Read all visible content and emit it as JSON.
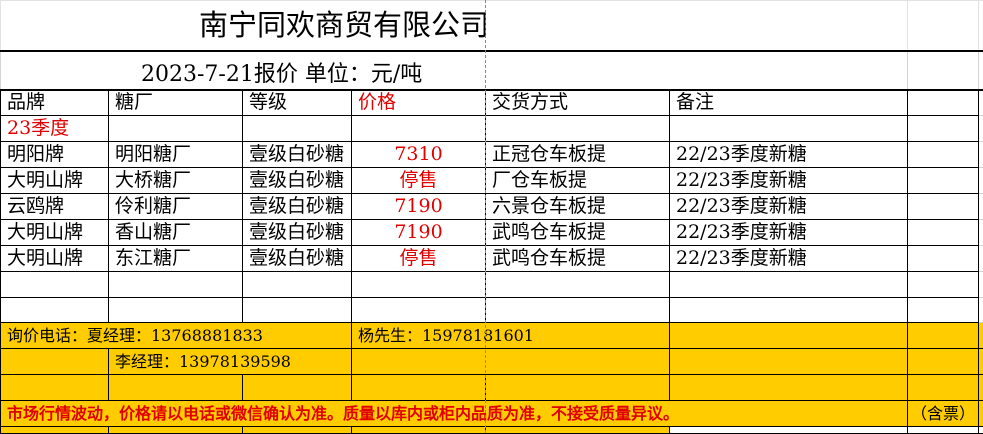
{
  "title": "南宁同欢商贸有限公司",
  "subtitle": "2023-7-21报价   单位：元/吨",
  "headers": [
    "品牌",
    "糖厂",
    "等级",
    "价格",
    "交货方式",
    "备注"
  ],
  "season_label": "23季度",
  "rows": [
    {
      "brand": "明阳牌",
      "mill": "明阳糖厂",
      "grade": "壹级白砂糖",
      "price": "7310",
      "delivery": "正冠仓车板提",
      "note": "22/23季度新糖"
    },
    {
      "brand": "大明山牌",
      "mill": "大桥糖厂",
      "grade": "壹级白砂糖",
      "price": "停售",
      "delivery": "厂仓车板提",
      "note": "22/23季度新糖"
    },
    {
      "brand": "云鸥牌",
      "mill": "伶利糖厂",
      "grade": "壹级白砂糖",
      "price": "7190",
      "delivery": "六景仓车板提",
      "note": "22/23季度新糖"
    },
    {
      "brand": "大明山牌",
      "mill": "香山糖厂",
      "grade": "壹级白砂糖",
      "price": "7190",
      "delivery": "武鸣仓车板提",
      "note": "22/23季度新糖"
    },
    {
      "brand": "大明山牌",
      "mill": "东江糖厂",
      "grade": "壹级白砂糖",
      "price": "停售",
      "delivery": "武鸣仓车板提",
      "note": "22/23季度新糖"
    }
  ],
  "contacts": {
    "line1": "询价电话：夏经理：13768881833",
    "line1b": "杨先生：15978181601",
    "line2": "李经理：13978139598"
  },
  "notice": "市场行情波动，价格请以电话或微信确认为准。质量以库内或柜内品质为准，不接受质量异议。",
  "tax_note": "（含票）",
  "colors": {
    "highlight": "#ffcc00",
    "price_red": "#e00000"
  }
}
